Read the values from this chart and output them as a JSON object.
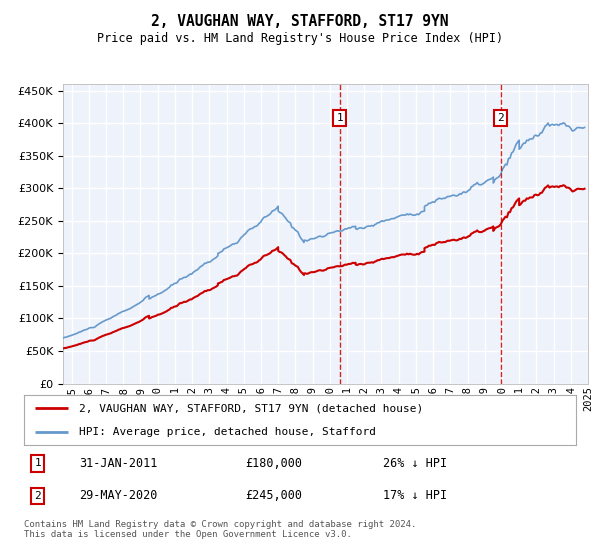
{
  "title": "2, VAUGHAN WAY, STAFFORD, ST17 9YN",
  "subtitle": "Price paid vs. HM Land Registry's House Price Index (HPI)",
  "ylim": [
    0,
    460000
  ],
  "yticks": [
    0,
    50000,
    100000,
    150000,
    200000,
    250000,
    300000,
    350000,
    400000,
    450000
  ],
  "xlim_start": 1995.0,
  "xlim_end": 2025.5,
  "plot_bg": "#eef2fa",
  "grid_color": "#ffffff",
  "transaction1_date": 2011.08,
  "transaction1_price": 180000,
  "transaction1_label": "1",
  "transaction2_date": 2020.42,
  "transaction2_price": 245000,
  "transaction2_label": "2",
  "legend_line1": "2, VAUGHAN WAY, STAFFORD, ST17 9YN (detached house)",
  "legend_line2": "HPI: Average price, detached house, Stafford",
  "table_row1_date": "31-JAN-2011",
  "table_row1_price": "£180,000",
  "table_row1_hpi": "26% ↓ HPI",
  "table_row2_date": "29-MAY-2020",
  "table_row2_price": "£245,000",
  "table_row2_hpi": "17% ↓ HPI",
  "footer": "Contains HM Land Registry data © Crown copyright and database right 2024.\nThis data is licensed under the Open Government Licence v3.0.",
  "hpi_color": "#6699cc",
  "price_color": "#cc0000",
  "vline_color": "#cc0000"
}
